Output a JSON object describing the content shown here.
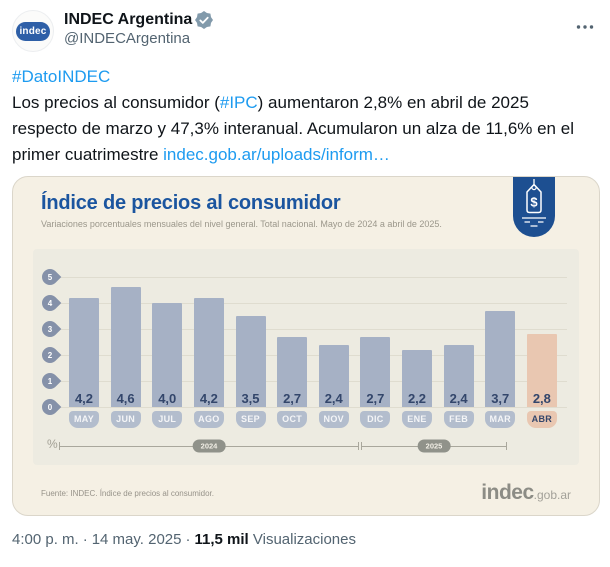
{
  "tweet": {
    "author": {
      "name": "INDEC Argentina",
      "handle": "@INDECArgentina",
      "avatar_text": "indec"
    },
    "body": {
      "hashtag_dato": "#DatoINDEC",
      "text_part1": "Los precios al consumidor (",
      "hashtag_ipc": "#IPC",
      "text_part2": ") aumentaron 2,8% en abril de 2025 respecto de marzo y 47,3% interanual. Acumularon un alza de 11,6% en el primer cuatrimestre ",
      "link_url": "indec.gob.ar/uploads/inform…"
    },
    "footer": {
      "time": "4:00 p. m.",
      "dot": "·",
      "date": "14 may. 2025",
      "views_count": "11,5 mil",
      "views_label": "Visualizaciones"
    }
  },
  "card": {
    "title": "Índice de precios al consumidor",
    "subtitle": "Variaciones porcentuales mensuales del nivel general. Total nacional. Mayo de 2024 a abril de 2025.",
    "source_note": "Fuente: INDEC. Índice de precios al consumidor.",
    "logo_main": "indec",
    "logo_suffix": ".gob.ar"
  },
  "chart_data": {
    "type": "bar",
    "title": "Índice de precios al consumidor",
    "subtitle": "Variaciones porcentuales mensuales del nivel general. Total nacional. Mayo de 2024 a abril de 2025.",
    "categories": [
      "MAY",
      "JUN",
      "JUL",
      "AGO",
      "SEP",
      "OCT",
      "NOV",
      "DIC",
      "ENE",
      "FEB",
      "MAR",
      "ABR"
    ],
    "values": [
      4.2,
      4.6,
      4.0,
      4.2,
      3.5,
      2.7,
      2.4,
      2.7,
      2.2,
      2.4,
      3.7,
      2.8
    ],
    "value_labels": [
      "4,2",
      "4,6",
      "4,0",
      "4,2",
      "3,5",
      "2,7",
      "2,4",
      "2,7",
      "2,2",
      "2,4",
      "3,7",
      "2,8"
    ],
    "highlight_index": 11,
    "unit_label": "%",
    "y_ticks": [
      5,
      4,
      3,
      2,
      1,
      0
    ],
    "ylim": [
      0,
      5
    ],
    "grid": true,
    "year_groups": [
      {
        "label": "2024",
        "categories": [
          "MAY",
          "JUN",
          "JUL",
          "AGO",
          "SEP",
          "OCT",
          "NOV",
          "DIC"
        ]
      },
      {
        "label": "2025",
        "categories": [
          "ENE",
          "FEB",
          "MAR",
          "ABR"
        ]
      }
    ],
    "colors": {
      "bar": "#a6b1c5",
      "highlight_bar": "#e9c7b1",
      "value_text": "#33466b",
      "title_blue": "#1b559f",
      "badge_blue": "#1d4f91"
    }
  }
}
